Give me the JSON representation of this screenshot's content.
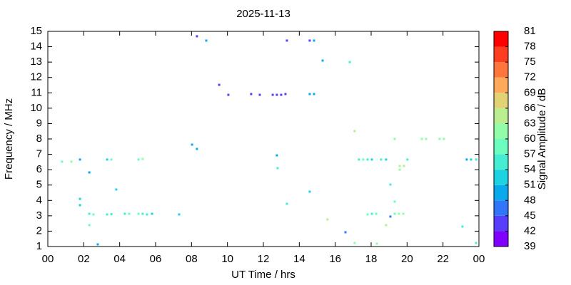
{
  "chart_data": {
    "type": "scatter",
    "title": "2025-11-13",
    "x_label": "UT Time / hrs",
    "y_label": "Frequency / MHz",
    "colorbar_label": "Signal Amplitude / dB",
    "xlim": [
      0,
      24
    ],
    "xticks": [
      {
        "value": 0,
        "label": "00"
      },
      {
        "value": 2,
        "label": "02"
      },
      {
        "value": 4,
        "label": "04"
      },
      {
        "value": 6,
        "label": "06"
      },
      {
        "value": 8,
        "label": "08"
      },
      10,
      12,
      14,
      16,
      18,
      20,
      22,
      {
        "value": 24,
        "label": "00"
      }
    ],
    "ylim": [
      1,
      15
    ],
    "yticks": [
      1,
      2,
      3,
      4,
      5,
      6,
      7,
      8,
      9,
      10,
      11,
      12,
      13,
      14,
      15
    ],
    "clim": [
      39,
      81
    ],
    "cticks": [
      39,
      42,
      45,
      48,
      51,
      54,
      57,
      60,
      63,
      66,
      69,
      72,
      75,
      78,
      81
    ],
    "colors": [
      "#8000ff",
      "#583dfd",
      "#3176f8",
      "#0aa9ee",
      "#1dd2e2",
      "#45eed2",
      "#6cfdbf",
      "#93fda9",
      "#baee91",
      "#e2d276",
      "#ffa95a",
      "#ff763d",
      "#ff3d1f",
      "#ff0000"
    ],
    "x": [
      0.79,
      1.31,
      1.79,
      2.31,
      1.79,
      1.79,
      2.31,
      2.54,
      2.31,
      2.78,
      3.3,
      3.54,
      3.3,
      3.54,
      3.81,
      4.29,
      4.53,
      5.05,
      5.05,
      5.28,
      5.28,
      5.52,
      5.8,
      7.31,
      8.03,
      8.3,
      8.3,
      8.82,
      9.54,
      10.05,
      11.32,
      11.8,
      12.52,
      12.75,
      12.99,
      13.23,
      13.31,
      12.75,
      12.79,
      13.31,
      14.58,
      14.82,
      14.58,
      14.82,
      14.58,
      15.3,
      15.57,
      16.57,
      16.81,
      17.08,
      17.08,
      17.32,
      17.56,
      17.8,
      18.04,
      18.55,
      18.83,
      17.8,
      18.04,
      18.28,
      18.32,
      18.83,
      19.07,
      19.07,
      19.31,
      19.31,
      19.31,
      19.55,
      19.79,
      19.59,
      19.83,
      19.59,
      20.02,
      20.82,
      21.06,
      21.81,
      22.05,
      23.08,
      23.32,
      23.56,
      23.84,
      23.84
    ],
    "y": [
      6.52,
      6.52,
      6.66,
      5.82,
      4.1,
      3.69,
      3.13,
      3.09,
      2.39,
      1.14,
      6.66,
      6.66,
      3.09,
      3.1,
      4.71,
      3.13,
      3.13,
      3.13,
      6.66,
      6.7,
      3.13,
      3.09,
      3.13,
      3.09,
      7.63,
      7.35,
      14.68,
      14.4,
      11.52,
      10.87,
      10.92,
      10.87,
      10.87,
      10.87,
      10.87,
      10.92,
      14.4,
      6.93,
      6.1,
      3.78,
      14.4,
      14.4,
      10.92,
      10.92,
      4.57,
      13.1,
      2.76,
      1.93,
      13.0,
      8.51,
      1.23,
      6.66,
      6.66,
      6.66,
      6.66,
      6.66,
      6.66,
      3.09,
      3.13,
      3.13,
      1.19,
      2.39,
      5.03,
      2.95,
      8.0,
      3.92,
      3.13,
      3.13,
      3.13,
      6.24,
      6.24,
      6.0,
      6.66,
      8.0,
      8.0,
      8.0,
      8.0,
      2.3,
      6.66,
      6.66,
      6.66,
      1.23
    ],
    "z": [
      58,
      62,
      50,
      50,
      52,
      52,
      56,
      57,
      58,
      48,
      52,
      57,
      54,
      55,
      52,
      54,
      57,
      58,
      59,
      61,
      56,
      54,
      53,
      51,
      49,
      49,
      43,
      48,
      44,
      44,
      44,
      44,
      43,
      43,
      43,
      43,
      44,
      48,
      56,
      56,
      44,
      50,
      48,
      50,
      52,
      50,
      63,
      46,
      55,
      63,
      60,
      54,
      57,
      56,
      51,
      56,
      52,
      58,
      55,
      57,
      60,
      63,
      54,
      45,
      60,
      58,
      58,
      60,
      60,
      64,
      63,
      60,
      54,
      61,
      60,
      61,
      62,
      55,
      50,
      52,
      54,
      56
    ]
  }
}
